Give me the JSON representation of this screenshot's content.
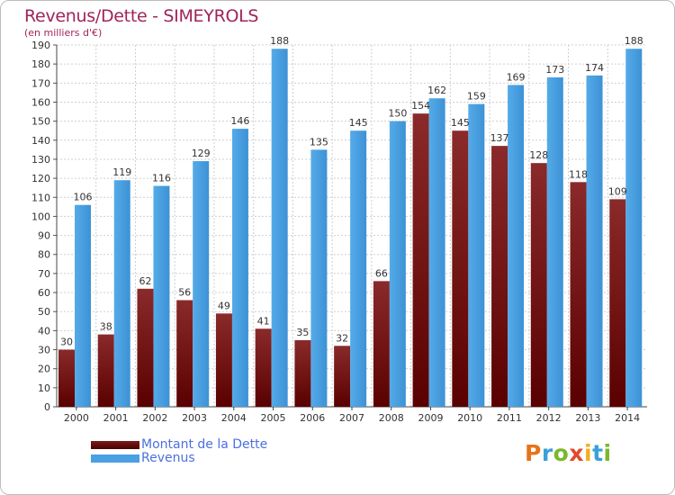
{
  "title": "Revenus/Dette - SIMEYROLS",
  "subtitle": "(en milliers d'€)",
  "logo": {
    "letters": [
      "P",
      "r",
      "o",
      "x",
      "i",
      "t",
      "i"
    ],
    "colors": [
      "#e8731a",
      "#3aa0d8",
      "#7ab829",
      "#e04a2a",
      "#f0b020",
      "#3aa0d8",
      "#7ab829"
    ]
  },
  "legend": [
    {
      "label": "Montant de la Dette",
      "color": "#6b0a0a"
    },
    {
      "label": "Revenus",
      "color": "#4aa0e0"
    }
  ],
  "chart_data": {
    "type": "bar",
    "categories": [
      "2000",
      "2001",
      "2002",
      "2003",
      "2004",
      "2005",
      "2006",
      "2007",
      "2008",
      "2009",
      "2010",
      "2011",
      "2012",
      "2013",
      "2014"
    ],
    "series": [
      {
        "name": "Montant de la Dette",
        "values": [
          30,
          38,
          62,
          56,
          49,
          41,
          35,
          32,
          66,
          154,
          145,
          137,
          128,
          118,
          109
        ],
        "color": "#6b0a0a"
      },
      {
        "name": "Revenus",
        "values": [
          106,
          119,
          116,
          129,
          146,
          188,
          135,
          145,
          150,
          162,
          159,
          169,
          173,
          174,
          188
        ],
        "color": "#4aa0e0"
      }
    ],
    "ylim": [
      0,
      190
    ],
    "yticks": [
      0,
      10,
      20,
      30,
      40,
      50,
      60,
      70,
      80,
      90,
      100,
      110,
      120,
      130,
      140,
      150,
      160,
      170,
      180,
      190
    ],
    "grid": true,
    "data_labels": true,
    "xlabel": "",
    "ylabel": ""
  }
}
